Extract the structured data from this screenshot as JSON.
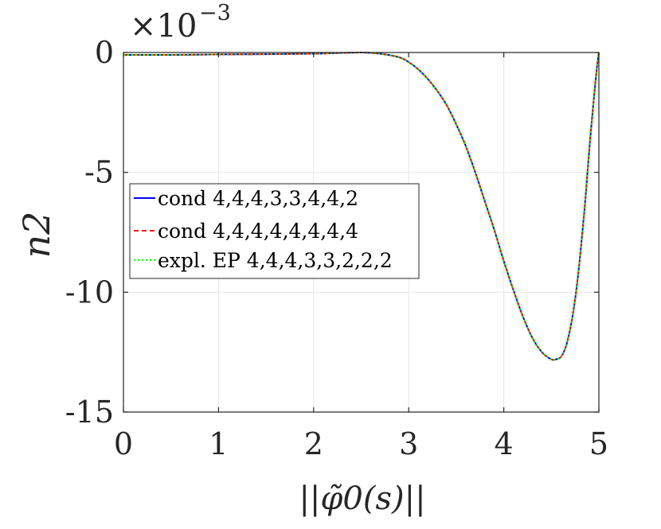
{
  "chart_data": {
    "type": "line",
    "xlabel": "||φ̃0(s)||",
    "ylabel": "n2",
    "exponent_base": "×10",
    "exponent_power": "−3",
    "xlim": [
      0,
      5
    ],
    "ylim": [
      -15,
      0
    ],
    "xticks": [
      "0",
      "1",
      "2",
      "3",
      "4",
      "5"
    ],
    "yticks": [
      "0",
      "-5",
      "-10",
      "-15"
    ],
    "grid": true,
    "legend_position": "center-left",
    "x": [
      0,
      0.5,
      1.0,
      1.5,
      2.0,
      2.2,
      2.5,
      2.7,
      2.9,
      3.0,
      3.1,
      3.2,
      3.3,
      3.4,
      3.5,
      3.6,
      3.7,
      3.8,
      3.9,
      4.0,
      4.1,
      4.2,
      4.3,
      4.4,
      4.5,
      4.55,
      4.6,
      4.65,
      4.7,
      4.75,
      4.8,
      4.85,
      4.9,
      4.95,
      4.98,
      5.0
    ],
    "series": [
      {
        "name": "cond 4,4,4,3,3,4,4,2",
        "color": "#0000ff",
        "dash": "solid",
        "values": [
          -0.1,
          -0.1,
          -0.08,
          -0.07,
          -0.05,
          -0.03,
          0.0,
          -0.05,
          -0.2,
          -0.4,
          -0.7,
          -1.1,
          -1.6,
          -2.2,
          -3.0,
          -3.9,
          -5.0,
          -6.2,
          -7.4,
          -8.7,
          -9.9,
          -11.0,
          -11.9,
          -12.5,
          -12.8,
          -12.8,
          -12.7,
          -12.3,
          -11.5,
          -10.3,
          -8.6,
          -6.5,
          -4.0,
          -1.8,
          -0.6,
          0.0
        ]
      },
      {
        "name": "cond 4,4,4,4,4,4,4,4",
        "color": "#ff0000",
        "dash": "dashed",
        "values": [
          -0.1,
          -0.1,
          -0.08,
          -0.07,
          -0.05,
          -0.03,
          0.0,
          -0.05,
          -0.2,
          -0.4,
          -0.7,
          -1.1,
          -1.6,
          -2.2,
          -3.0,
          -3.9,
          -5.0,
          -6.2,
          -7.4,
          -8.7,
          -9.9,
          -11.0,
          -11.9,
          -12.5,
          -12.8,
          -12.8,
          -12.7,
          -12.3,
          -11.5,
          -10.3,
          -8.6,
          -6.5,
          -4.0,
          -1.8,
          -0.6,
          0.0
        ]
      },
      {
        "name": "expl. EP 4,4,4,3,3,2,2,2",
        "color": "#00ff00",
        "dash": "dotted",
        "values": [
          -0.1,
          -0.1,
          -0.08,
          -0.07,
          -0.05,
          -0.03,
          0.0,
          -0.05,
          -0.2,
          -0.4,
          -0.7,
          -1.1,
          -1.6,
          -2.2,
          -3.0,
          -3.9,
          -5.0,
          -6.2,
          -7.4,
          -8.7,
          -9.9,
          -11.0,
          -11.9,
          -12.5,
          -12.8,
          -12.8,
          -12.7,
          -12.3,
          -11.5,
          -10.3,
          -8.6,
          -6.5,
          -4.0,
          -1.8,
          -0.6,
          0.0
        ]
      }
    ]
  }
}
